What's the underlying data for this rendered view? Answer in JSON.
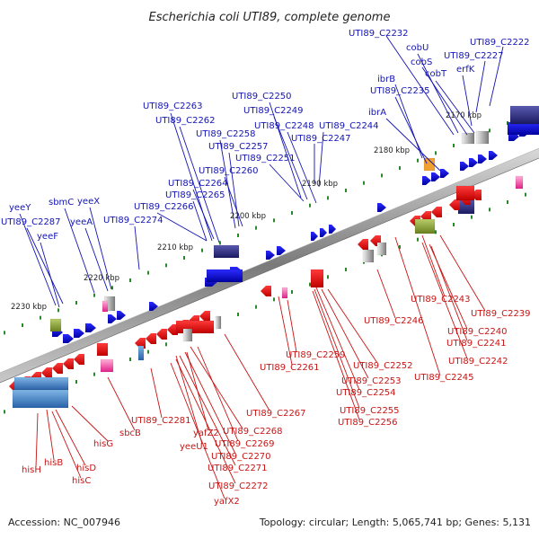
{
  "title": "Escherichia coli UTI89, complete genome",
  "footer": {
    "accession": "Accession: NC_007946",
    "topology": "Topology: circular; Length: 5,065,741 bp; Genes: 5,131"
  },
  "kbp_labels": [
    "2170 kbp",
    "2180 kbp",
    "2190 kbp",
    "2200 kbp",
    "2210 kbp",
    "2220 kbp",
    "2230 kbp"
  ],
  "top_labels": [
    "UTI89_C2232",
    "cobU",
    "UTI89_C2222",
    "cobS",
    "UTI89_C2227",
    "cobT",
    "erfK",
    "ibrB",
    "UTI89_C2235",
    "ibrA",
    "UTI89_C2250",
    "UTI89_C2263",
    "UTI89_C2249",
    "UTI89_C2262",
    "UTI89_C2248",
    "UTI89_C2244",
    "UTI89_C2258",
    "UTI89_C2247",
    "UTI89_C2257",
    "UTI89_C2251",
    "UTI89_C2260",
    "UTI89_C2264",
    "UTI89_C2265",
    "yeeX",
    "sbmC",
    "yeeY",
    "UTI89_C2266",
    "UTI89_C2287",
    "yeeA",
    "UTI89_C2274",
    "yeeF"
  ],
  "bottom_labels": [
    "UTI89_C2243",
    "UTI89_C2239",
    "UTI89_C2246",
    "UTI89_C2240",
    "UTI89_C2241",
    "UTI89_C2242",
    "UTI89_C2245",
    "UTI89_C2259",
    "UTI89_C2261",
    "UTI89_C2252",
    "UTI89_C2253",
    "UTI89_C2254",
    "UTI89_C2255",
    "UTI89_C2256",
    "UTI89_C2267",
    "UTI89_C2281",
    "UTI89_C2268",
    "yafZ2",
    "yeeU1",
    "UTI89_C2269",
    "UTI89_C2270",
    "UTI89_C2271",
    "UTI89_C2272",
    "yafX2",
    "sbcB",
    "hisG",
    "hisH",
    "hisB",
    "hisD",
    "hisC"
  ],
  "colors": {
    "forward": "#1010e0",
    "reverse": "#e81010",
    "backbone": "#8a8a8a",
    "tick": "#2a8a2a",
    "label_top": "#1414b4",
    "label_bottom": "#c81414"
  }
}
